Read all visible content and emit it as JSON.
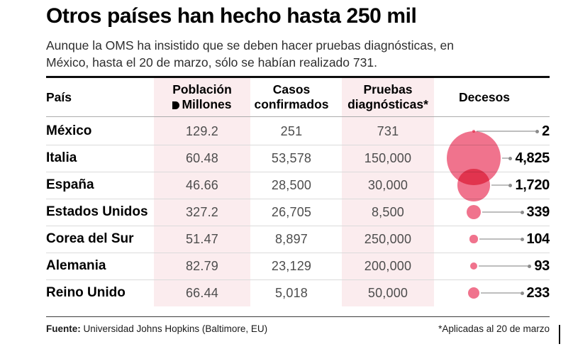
{
  "header": {
    "title": "Otros países han hecho hasta 250 mil",
    "subtitle_line1": "Aunque la OMS ha insistido que se deben hacer pruebas diagnósticas, en",
    "subtitle_line2": "México, hasta el 20 de marzo, sólo se habían realizado 731."
  },
  "table": {
    "columns": {
      "country": "País",
      "population_line1": "Población",
      "population_line2": "Millones",
      "population_icon": "half-circle-icon",
      "cases_line1": "Casos",
      "cases_line2": "confirmados",
      "tests_line1": "Pruebas",
      "tests_line2": "diagnósticas*",
      "deaths": "Decesos"
    },
    "rows": [
      {
        "country": "México",
        "population": "129.2",
        "cases": "251",
        "tests": "731",
        "deaths": "2",
        "deaths_value": 2
      },
      {
        "country": "Italia",
        "population": "60.48",
        "cases": "53,578",
        "tests": "150,000",
        "deaths": "4,825",
        "deaths_value": 4825
      },
      {
        "country": "España",
        "population": "46.66",
        "cases": "28,500",
        "tests": "30,000",
        "deaths": "1,720",
        "deaths_value": 1720
      },
      {
        "country": "Estados Unidos",
        "population": "327.2",
        "cases": "26,705",
        "tests": "8,500",
        "deaths": "339",
        "deaths_value": 339
      },
      {
        "country": "Corea del Sur",
        "population": "51.47",
        "cases": "8,897",
        "tests": "250,000",
        "deaths": "104",
        "deaths_value": 104
      },
      {
        "country": "Alemania",
        "population": "82.79",
        "cases": "23,129",
        "tests": "200,000",
        "deaths": "93",
        "deaths_value": 93
      },
      {
        "country": "Reino Unido",
        "population": "66.44",
        "cases": "5,018",
        "tests": "50,000",
        "deaths": "233",
        "deaths_value": 233
      }
    ]
  },
  "footer": {
    "source_label": "Fuente:",
    "source_text": "Universidad Johns Hopkins (Baltimore, EU)",
    "note": "*Aplicadas al 20 de marzo"
  },
  "colors": {
    "bubble_pink": "#F0738D",
    "bubble_overlap": "#E0175A",
    "column_highlight": "#FBECEE",
    "connector_gray": "#BEBEBE"
  },
  "chart_data": {
    "type": "table",
    "title": "Otros países han hecho hasta 250 mil",
    "subtitle": "Aunque la OMS ha insistido que se deben hacer pruebas diagnósticas, en México, hasta el 20 de marzo, sólo se habían realizado 731.",
    "columns": [
      "País",
      "Población (Millones)",
      "Casos confirmados",
      "Pruebas diagnósticas*",
      "Decesos"
    ],
    "rows": [
      [
        "México",
        129.2,
        251,
        731,
        2
      ],
      [
        "Italia",
        60.48,
        53578,
        150000,
        4825
      ],
      [
        "España",
        46.66,
        28500,
        30000,
        1720
      ],
      [
        "Estados Unidos",
        327.2,
        26705,
        8500,
        339
      ],
      [
        "Corea del Sur",
        51.47,
        8897,
        250000,
        104
      ],
      [
        "Alemania",
        82.79,
        23129,
        200000,
        93
      ],
      [
        "Reino Unido",
        66.44,
        5018,
        50000,
        233
      ]
    ],
    "deaths_encoding": "area-proportional bubbles, max radius 38px at 4825 deaths",
    "source": "Fuente: Universidad Johns Hopkins (Baltimore, EU)",
    "footnote": "*Aplicadas al 20 de marzo"
  }
}
